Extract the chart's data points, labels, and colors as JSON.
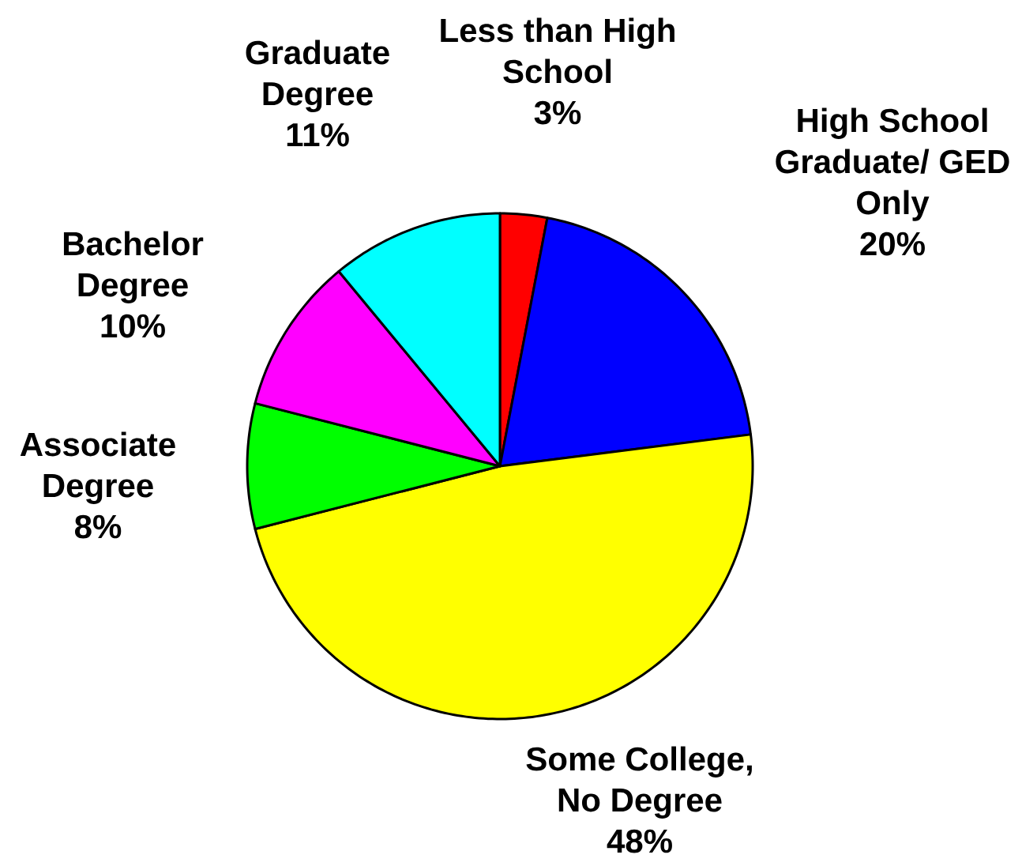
{
  "chart_data": {
    "type": "pie",
    "categories": [
      "Less than High School",
      "High School Graduate/ GED Only",
      "Some College, No Degree",
      "Associate Degree",
      "Bachelor Degree",
      "Graduate Degree"
    ],
    "values": [
      3,
      20,
      48,
      8,
      10,
      11
    ],
    "colors": [
      "#ff0000",
      "#0000ff",
      "#ffff00",
      "#00ff00",
      "#ff00ff",
      "#00ffff"
    ],
    "value_labels": [
      "3%",
      "20%",
      "48%",
      "8%",
      "10%",
      "11%"
    ]
  }
}
